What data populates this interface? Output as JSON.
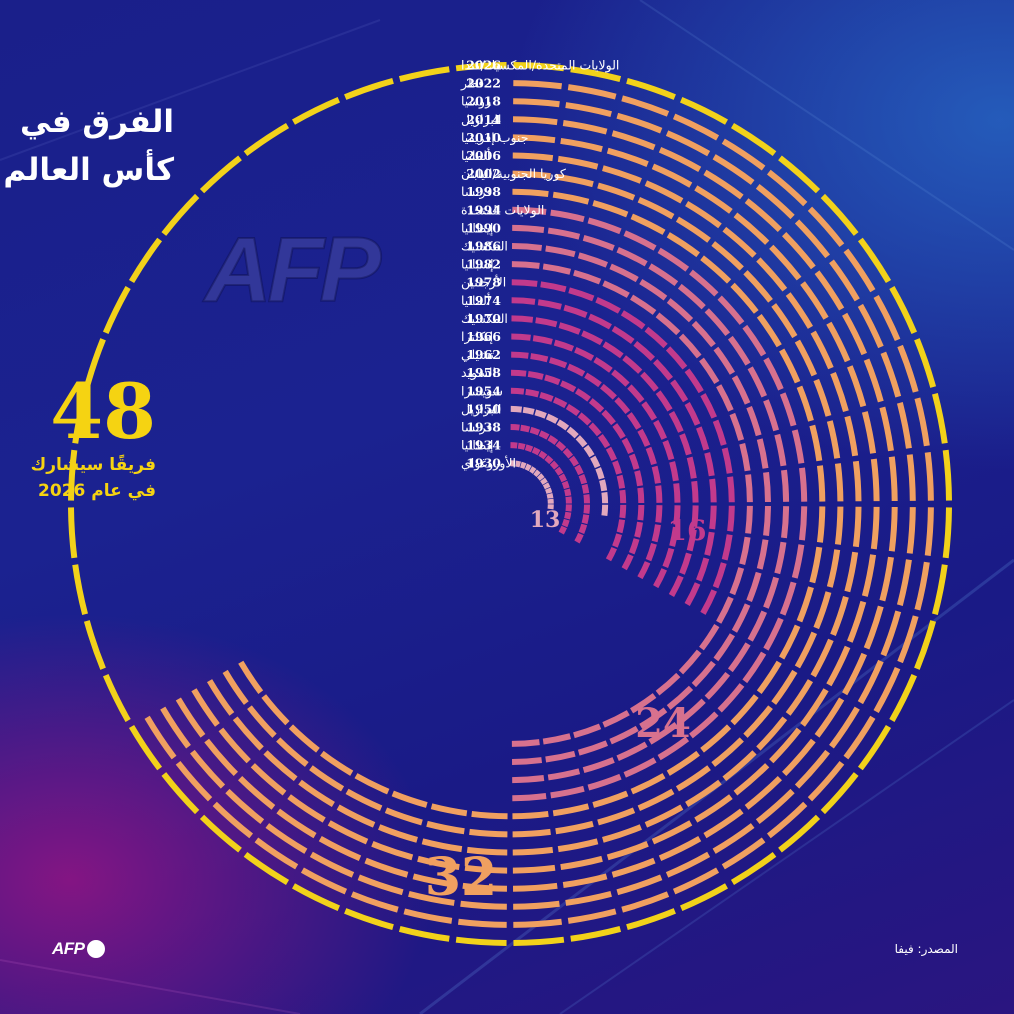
{
  "title": {
    "line1": "الفرق في",
    "line2": "كأس العالم"
  },
  "headline": {
    "number": "48",
    "caption_line1": "فريقًا سيشارك",
    "caption_line2": "في عام 2026"
  },
  "source": "المصدر: فيفا",
  "logo": "AFP",
  "watermark": "AFP",
  "colors": {
    "team48": "#f2d21a",
    "team32": "#f0a060",
    "team24": "#d7718e",
    "team16": "#c23a8c",
    "team13": "#e2a8bd",
    "background": "#1a1f8a"
  },
  "chart_data": {
    "type": "radial-bar",
    "unit": "teams",
    "editions": [
      {
        "year": "2026",
        "host": "الولايات المتحدة/المكسيك/كندا",
        "teams": 48
      },
      {
        "year": "2022",
        "host": "قطر",
        "teams": 32
      },
      {
        "year": "2018",
        "host": "روسيا",
        "teams": 32
      },
      {
        "year": "2014",
        "host": "البرازيل",
        "teams": 32
      },
      {
        "year": "2010",
        "host": "جنوب إفريقيا",
        "teams": 32
      },
      {
        "year": "2006",
        "host": "ألمانيا",
        "teams": 32
      },
      {
        "year": "2002",
        "host": "كوريا الجنوبية/اليابان",
        "teams": 32
      },
      {
        "year": "1998",
        "host": "فرنسا",
        "teams": 32
      },
      {
        "year": "1994",
        "host": "الولايات المتحدة",
        "teams": 24
      },
      {
        "year": "1990",
        "host": "إيطاليا",
        "teams": 24
      },
      {
        "year": "1986",
        "host": "المكسيك",
        "teams": 24
      },
      {
        "year": "1982",
        "host": "إسبانيا",
        "teams": 24
      },
      {
        "year": "1978",
        "host": "الأرجنتين",
        "teams": 16
      },
      {
        "year": "1974",
        "host": "ألمانيا",
        "teams": 16
      },
      {
        "year": "1970",
        "host": "المكسيك",
        "teams": 16
      },
      {
        "year": "1966",
        "host": "إنكلترا",
        "teams": 16
      },
      {
        "year": "1962",
        "host": "تشيلي",
        "teams": 16
      },
      {
        "year": "1958",
        "host": "السويد",
        "teams": 16
      },
      {
        "year": "1954",
        "host": "سويسرا",
        "teams": 16
      },
      {
        "year": "1950",
        "host": "البرازيل",
        "teams": 13
      },
      {
        "year": "1938",
        "host": "فرنسا",
        "teams": 16
      },
      {
        "year": "1934",
        "host": "إيطاليا",
        "teams": 16
      },
      {
        "year": "1930",
        "host": "الأوروغواي",
        "teams": 13
      }
    ],
    "annotations": [
      "13",
      "16",
      "24",
      "32"
    ]
  }
}
